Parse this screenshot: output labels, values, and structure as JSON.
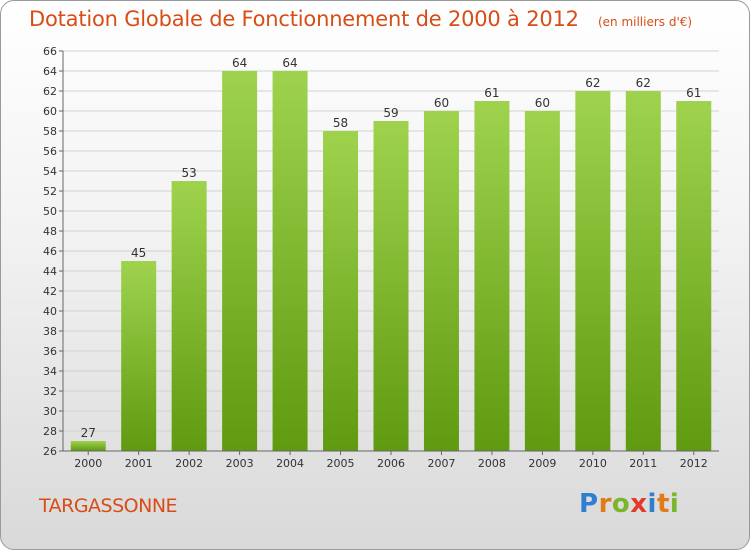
{
  "header": {
    "title": "Dotation Globale de Fonctionnement de 2000 à 2012",
    "unit": "(en milliers d'€)"
  },
  "commune": "TARGASSONNE",
  "logo": {
    "text": "Proxiti",
    "letters": [
      {
        "ch": "P",
        "color": "#2f7fd0"
      },
      {
        "ch": "r",
        "color": "#e27a1a"
      },
      {
        "ch": "o",
        "color": "#7bb52b"
      },
      {
        "ch": "x",
        "color": "#e33a2b"
      },
      {
        "ch": "i",
        "color": "#2f7fd0"
      },
      {
        "ch": "t",
        "color": "#e27a1a"
      },
      {
        "ch": "i",
        "color": "#7bb52b"
      }
    ]
  },
  "chart_data": {
    "type": "bar",
    "categories": [
      "2000",
      "2001",
      "2002",
      "2003",
      "2004",
      "2005",
      "2006",
      "2007",
      "2008",
      "2009",
      "2010",
      "2011",
      "2012"
    ],
    "values": [
      27,
      45,
      53,
      64,
      64,
      58,
      59,
      60,
      61,
      60,
      62,
      62,
      61
    ],
    "data_labels": [
      "27",
      "45",
      "53",
      "64",
      "64",
      "58",
      "59",
      "60",
      "61",
      "60",
      "62",
      "62",
      "61"
    ],
    "ylim": [
      26,
      66
    ],
    "ytick_step": 2,
    "yticks": [
      "26",
      "28",
      "30",
      "32",
      "34",
      "36",
      "38",
      "40",
      "42",
      "44",
      "46",
      "48",
      "50",
      "52",
      "54",
      "56",
      "58",
      "60",
      "62",
      "64",
      "66"
    ],
    "grid": true,
    "colors": {
      "bar_top": "#9fd34e",
      "bar_bottom": "#5f9a10",
      "grid": "#d2d2d2",
      "axis": "#666666"
    }
  }
}
